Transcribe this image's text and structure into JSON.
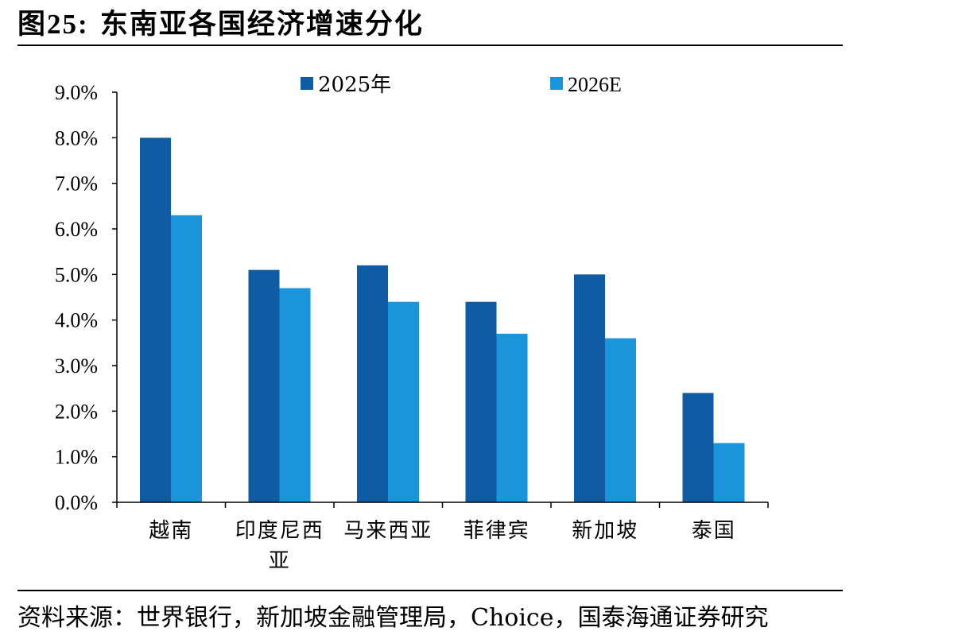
{
  "figure": {
    "label": "图25:",
    "title": "东南亚各国经济增速分化"
  },
  "source": "资料来源：世界银行，新加坡金融管理局，Choice，国泰海通证券研究",
  "colors": {
    "series_2025": "#0F5CA5",
    "series_2026": "#1A94DA",
    "axis": "#000000"
  },
  "chart_data": {
    "type": "bar",
    "categories": [
      "越南",
      "印度尼西亚",
      "马来西亚",
      "菲律宾",
      "新加坡",
      "泰国"
    ],
    "series": [
      {
        "name": "2025年",
        "values": [
          8.0,
          5.1,
          5.2,
          4.4,
          5.0,
          2.4
        ]
      },
      {
        "name": "2026E",
        "values": [
          6.3,
          4.7,
          4.4,
          3.7,
          3.6,
          1.3
        ]
      }
    ],
    "y_ticks": [
      "0.0%",
      "1.0%",
      "2.0%",
      "3.0%",
      "4.0%",
      "5.0%",
      "6.0%",
      "7.0%",
      "8.0%",
      "9.0%"
    ],
    "ylim": [
      0,
      9
    ],
    "legend_position": "top",
    "grid": false
  }
}
